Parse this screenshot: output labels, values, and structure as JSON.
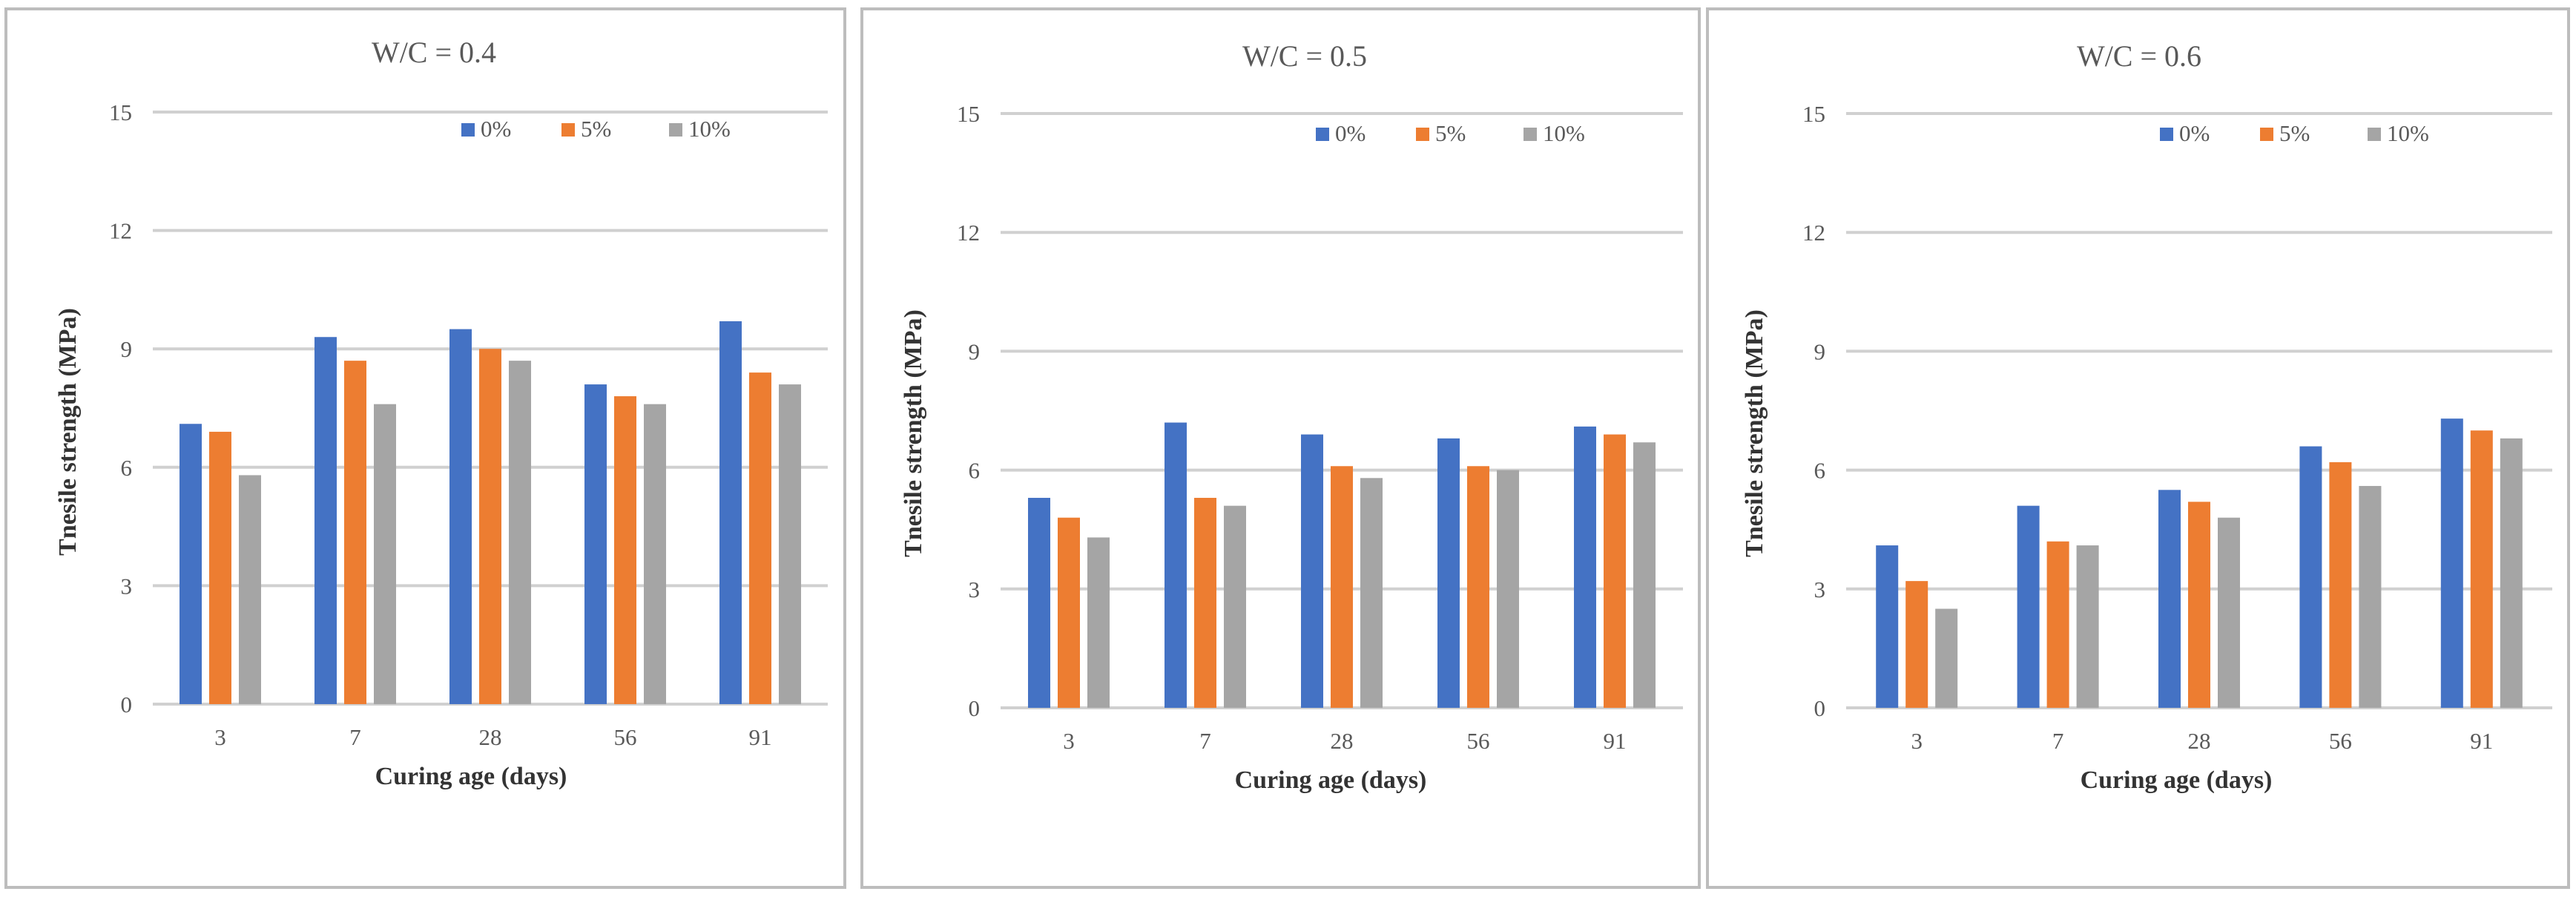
{
  "colors": {
    "s0": "#4472c4",
    "s1": "#ed7d31",
    "s2": "#a5a5a5",
    "grid": "#d0d0d0"
  },
  "chart_data": [
    {
      "type": "bar",
      "title": "W/C = 0.4",
      "xlabel": "Curing age (days)",
      "ylabel": "Tnesile strength (MPa)",
      "ylim": [
        0,
        15
      ],
      "yticks": [
        "0",
        "3",
        "6",
        "9",
        "12",
        "15"
      ],
      "grid": true,
      "legend_position": "top-right",
      "categories": [
        "3",
        "7",
        "28",
        "56",
        "91"
      ],
      "series": [
        {
          "name": "0%",
          "values": [
            7.1,
            9.3,
            9.5,
            8.1,
            9.7
          ]
        },
        {
          "name": "5%",
          "values": [
            6.9,
            8.7,
            9.0,
            7.8,
            8.4
          ]
        },
        {
          "name": "10%",
          "values": [
            5.8,
            7.6,
            8.7,
            7.6,
            8.1
          ]
        }
      ]
    },
    {
      "type": "bar",
      "title": "W/C = 0.5",
      "xlabel": "Curing age (days)",
      "ylabel": "Tnesile strength (MPa)",
      "ylim": [
        0,
        15
      ],
      "yticks": [
        "0",
        "3",
        "6",
        "9",
        "12",
        "15"
      ],
      "grid": true,
      "legend_position": "top-right",
      "categories": [
        "3",
        "7",
        "28",
        "56",
        "91"
      ],
      "series": [
        {
          "name": "0%",
          "values": [
            5.3,
            7.2,
            6.9,
            6.8,
            7.1
          ]
        },
        {
          "name": "5%",
          "values": [
            4.8,
            5.3,
            6.1,
            6.1,
            6.9
          ]
        },
        {
          "name": "10%",
          "values": [
            4.3,
            5.1,
            5.8,
            6.0,
            6.7
          ]
        }
      ]
    },
    {
      "type": "bar",
      "title": "W/C = 0.6",
      "xlabel": "Curing age (days)",
      "ylabel": "Tnesile strength (MPa)",
      "ylim": [
        0,
        15
      ],
      "yticks": [
        "0",
        "3",
        "6",
        "9",
        "12",
        "15"
      ],
      "grid": true,
      "legend_position": "top-right",
      "categories": [
        "3",
        "7",
        "28",
        "56",
        "91"
      ],
      "series": [
        {
          "name": "0%",
          "values": [
            4.1,
            5.1,
            5.5,
            6.6,
            7.3
          ]
        },
        {
          "name": "5%",
          "values": [
            3.2,
            4.2,
            5.2,
            6.2,
            7.0
          ]
        },
        {
          "name": "10%",
          "values": [
            2.5,
            4.1,
            4.8,
            5.6,
            6.8
          ]
        }
      ]
    }
  ]
}
